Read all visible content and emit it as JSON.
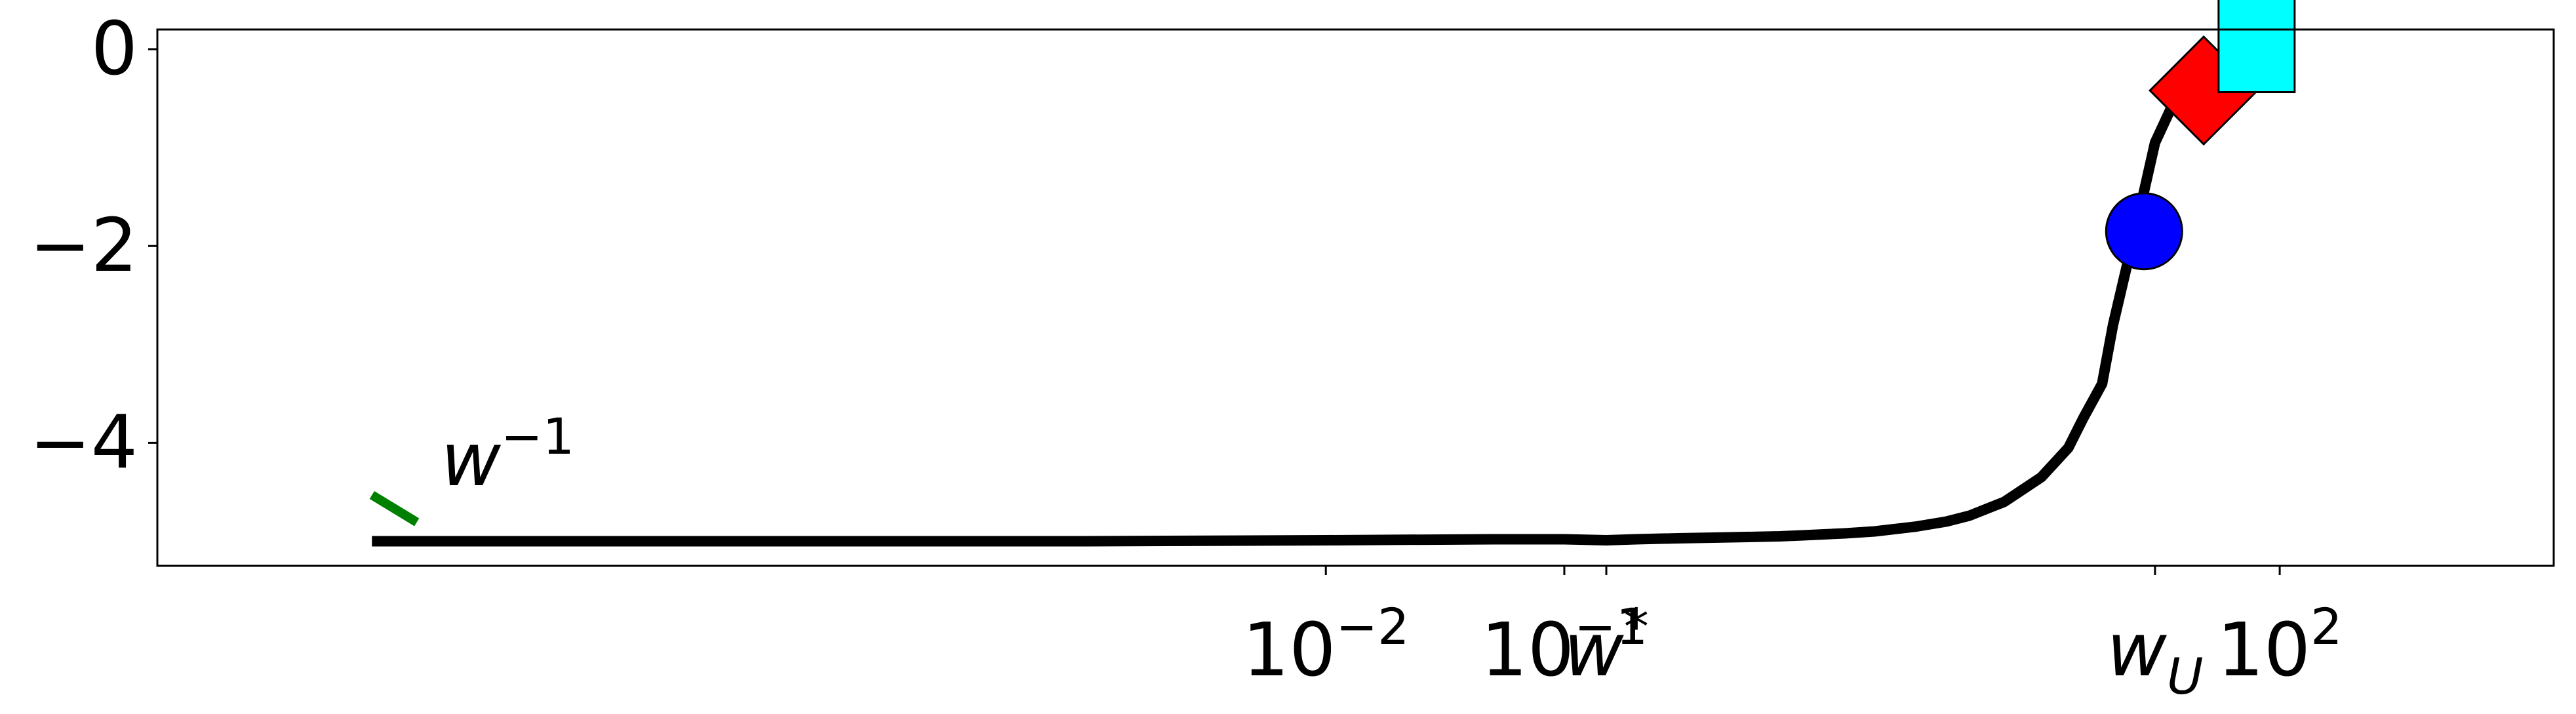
{
  "chart_data": {
    "type": "line",
    "title": "",
    "xlabel": "",
    "ylabel": "",
    "x_scale": "log",
    "xlim": [
      1e-06,
      500
    ],
    "ylim": [
      -5.25,
      0.2
    ],
    "grid": false,
    "legend": "none",
    "x_ticks": [
      {
        "x": 0.01,
        "base": "10",
        "exp": "−2"
      },
      {
        "x": 0.1,
        "base": "10",
        "exp": "−1"
      },
      {
        "x": 0.15,
        "label": "w",
        "exp": "*"
      },
      {
        "x": 30,
        "label": "w",
        "sub": "U"
      },
      {
        "x": 100,
        "base": "10",
        "exp": "2"
      }
    ],
    "y_ticks": [
      {
        "y": 0,
        "label": "0"
      },
      {
        "y": -2,
        "label": "−2"
      },
      {
        "y": -4,
        "label": "−4"
      }
    ],
    "series": [
      {
        "color": "#000000",
        "x": [
          1e-06,
          1e-05,
          0.0001,
          0.001,
          0.01,
          0.05,
          0.1,
          0.15,
          0.2,
          0.3,
          0.5,
          0.8,
          1,
          1.5,
          2,
          3,
          4,
          5,
          7,
          10,
          13,
          15,
          18,
          20,
          25,
          30,
          35,
          45,
          60,
          80,
          100
        ],
        "y": [
          -5.0,
          -5.0,
          -5.0,
          -5.0,
          -4.99,
          -4.98,
          -4.98,
          -4.99,
          -4.98,
          -4.97,
          -4.96,
          -4.95,
          -4.94,
          -4.92,
          -4.9,
          -4.85,
          -4.8,
          -4.74,
          -4.6,
          -4.35,
          -4.05,
          -3.75,
          -3.4,
          -2.8,
          -1.8,
          -0.95,
          -0.6,
          -0.37,
          -0.22,
          -0.12,
          -0.06
        ]
      }
    ],
    "reference_line": {
      "label": "w",
      "exp": "−1",
      "color": "#008000",
      "x": [
        1e-06,
        1.7e-06
      ],
      "y": [
        -4.53,
        -4.87
      ]
    },
    "markers": [
      {
        "shape": "circle",
        "x": 27,
        "y": -1.85,
        "color": "#0000ff"
      },
      {
        "shape": "diamond",
        "x": 48,
        "y": -0.42,
        "color": "#ff0000"
      },
      {
        "shape": "square",
        "x": 80,
        "y": -0.05,
        "color": "#00ffff"
      }
    ]
  }
}
